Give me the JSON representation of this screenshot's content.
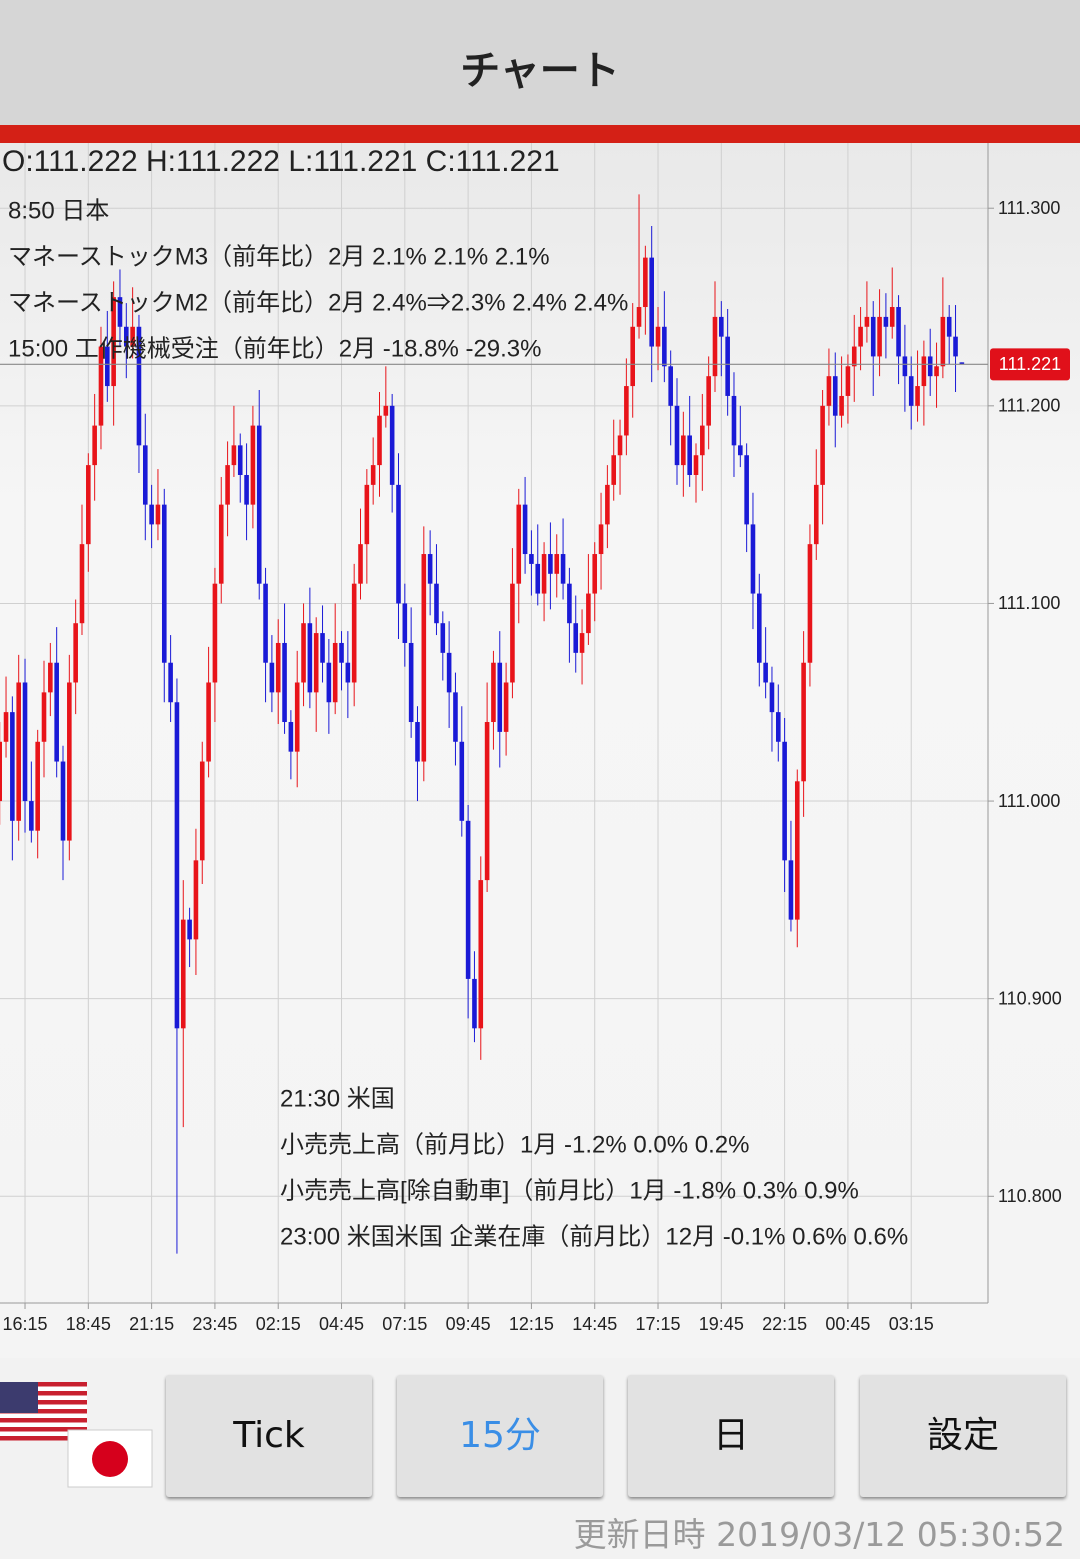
{
  "header": {
    "title": "チャート"
  },
  "chart_data": {
    "type": "candlestick",
    "ohlc_text": "O:111.222 H:111.222 L:111.221 C:111.221",
    "annotations": {
      "top": [
        "8:50 日本",
        "マネーストックM3（前年比）2月 2.1% 2.1% 2.1%",
        "マネーストックM2（前年比）2月 2.4%⇒2.3% 2.4% 2.4%",
        "15:00 工作機械受注（前年比）2月 -18.8% -29.3%"
      ],
      "bottom": [
        "21:30 米国",
        "小売売上高（前月比）1月 -1.2% 0.0% 0.2%",
        "小売売上高[除自動車]（前月比）1月 -1.8% 0.3% 0.9%",
        "23:00 米国米国 企業在庫（前月比）12月 -0.1% 0.6% 0.6%"
      ]
    },
    "categories": [
      null,
      null,
      null,
      null,
      "16:15",
      null,
      null,
      null,
      null,
      null,
      null,
      null,
      null,
      null,
      "18:45",
      null,
      null,
      null,
      null,
      null,
      null,
      null,
      null,
      null,
      "21:15",
      null,
      null,
      null,
      null,
      null,
      null,
      null,
      null,
      null,
      "23:45",
      null,
      null,
      null,
      null,
      null,
      null,
      null,
      null,
      null,
      "02:15",
      null,
      null,
      null,
      null,
      null,
      null,
      null,
      null,
      null,
      "04:45",
      null,
      null,
      null,
      null,
      null,
      null,
      null,
      null,
      null,
      "07:15",
      null,
      null,
      null,
      null,
      null,
      null,
      null,
      null,
      null,
      "09:45",
      null,
      null,
      null,
      null,
      null,
      null,
      null,
      null,
      null,
      "12:15",
      null,
      null,
      null,
      null,
      null,
      null,
      null,
      null,
      null,
      "14:45",
      null,
      null,
      null,
      null,
      null,
      null,
      null,
      null,
      null,
      "17:15",
      null,
      null,
      null,
      null,
      null,
      null,
      null,
      null,
      null,
      "19:45",
      null,
      null,
      null,
      null,
      null,
      null,
      null,
      null,
      null,
      "22:15",
      null,
      null,
      null,
      null,
      null,
      null,
      null,
      null,
      null,
      "00:45",
      null,
      null,
      null,
      null,
      null,
      null,
      null,
      null,
      null,
      "03:15",
      null,
      null,
      null,
      null,
      null,
      null,
      null,
      null
    ],
    "open": [
      111.0,
      111.03,
      111.045,
      110.99,
      111.06,
      111.0,
      110.985,
      111.03,
      111.055,
      111.07,
      111.02,
      110.98,
      111.06,
      111.09,
      111.13,
      111.17,
      111.19,
      111.23,
      111.21,
      111.255,
      111.24,
      111.23,
      111.24,
      111.18,
      111.15,
      111.14,
      111.15,
      111.07,
      111.05,
      110.885,
      110.94,
      110.93,
      110.97,
      111.02,
      111.06,
      111.11,
      111.15,
      111.17,
      111.18,
      111.165,
      111.15,
      111.19,
      111.11,
      111.07,
      111.055,
      111.08,
      111.04,
      111.025,
      111.06,
      111.09,
      111.055,
      111.085,
      111.07,
      111.05,
      111.08,
      111.07,
      111.06,
      111.11,
      111.13,
      111.16,
      111.17,
      111.195,
      111.2,
      111.16,
      111.1,
      111.08,
      111.04,
      111.02,
      111.125,
      111.11,
      111.09,
      111.075,
      111.055,
      111.03,
      110.99,
      110.91,
      110.885,
      110.96,
      111.04,
      111.07,
      111.035,
      111.06,
      111.11,
      111.15,
      111.125,
      111.12,
      111.105,
      111.125,
      111.115,
      111.125,
      111.11,
      111.09,
      111.075,
      111.085,
      111.105,
      111.125,
      111.14,
      111.16,
      111.175,
      111.185,
      111.21,
      111.24,
      111.25,
      111.275,
      111.23,
      111.24,
      111.22,
      111.2,
      111.17,
      111.185,
      111.165,
      111.175,
      111.19,
      111.215,
      111.245,
      111.235,
      111.205,
      111.18,
      111.175,
      111.14,
      111.105,
      111.07,
      111.06,
      111.045,
      111.03,
      110.97,
      110.94,
      111.01,
      111.07,
      111.13,
      111.16,
      111.2,
      111.215,
      111.195,
      111.205,
      111.22,
      111.23,
      111.24,
      111.245,
      111.225,
      111.245,
      111.24,
      111.25,
      111.225,
      111.215,
      111.2,
      111.21,
      111.225,
      111.215,
      111.22,
      111.245,
      111.235,
      111.222
    ],
    "high": [
      111.04,
      111.063,
      111.053,
      111.074,
      111.072,
      111.02,
      111.036,
      111.071,
      111.08,
      111.088,
      111.028,
      111.074,
      111.102,
      111.15,
      111.176,
      111.206,
      111.24,
      111.248,
      111.263,
      111.269,
      111.252,
      111.26,
      111.246,
      111.196,
      111.16,
      111.168,
      111.158,
      111.084,
      111.062,
      110.96,
      110.946,
      110.986,
      111.03,
      111.078,
      111.118,
      111.164,
      111.182,
      111.2,
      111.186,
      111.181,
      111.2,
      111.208,
      111.118,
      111.084,
      111.092,
      111.1,
      111.046,
      111.076,
      111.1,
      111.108,
      111.093,
      111.099,
      111.082,
      111.1,
      111.086,
      111.086,
      111.12,
      111.148,
      111.168,
      111.184,
      111.207,
      111.22,
      111.206,
      111.176,
      111.11,
      111.098,
      111.048,
      111.139,
      111.137,
      111.13,
      111.096,
      111.091,
      111.065,
      111.048,
      110.998,
      110.924,
      110.972,
      111.06,
      111.076,
      111.086,
      111.07,
      111.128,
      111.158,
      111.164,
      111.137,
      111.14,
      111.131,
      111.141,
      111.135,
      111.143,
      111.118,
      111.104,
      111.097,
      111.125,
      111.131,
      111.156,
      111.17,
      111.193,
      111.193,
      111.224,
      111.252,
      111.307,
      111.281,
      111.291,
      111.25,
      111.258,
      111.228,
      111.214,
      111.197,
      111.205,
      111.181,
      111.206,
      111.225,
      111.263,
      111.253,
      111.249,
      111.217,
      111.2,
      111.181,
      111.156,
      111.115,
      111.088,
      111.068,
      111.059,
      111.042,
      110.99,
      111.016,
      111.086,
      111.14,
      111.178,
      111.208,
      111.229,
      111.227,
      111.225,
      111.226,
      111.246,
      111.25,
      111.263,
      111.253,
      111.259,
      111.257,
      111.27,
      111.256,
      111.241,
      111.225,
      111.228,
      111.233,
      111.239,
      111.232,
      111.265,
      111.251,
      111.251,
      111.222
    ],
    "low": [
      110.988,
      111.022,
      110.97,
      110.98,
      110.984,
      110.979,
      110.971,
      111.012,
      111.043,
      111.012,
      110.96,
      110.97,
      111.044,
      111.084,
      111.116,
      111.152,
      111.178,
      111.202,
      111.19,
      111.23,
      111.214,
      111.224,
      111.166,
      111.132,
      111.128,
      111.132,
      111.05,
      111.04,
      110.771,
      110.835,
      110.916,
      110.912,
      110.958,
      111.012,
      111.04,
      111.1,
      111.134,
      111.164,
      111.151,
      111.132,
      111.138,
      111.102,
      111.05,
      111.045,
      111.039,
      111.034,
      111.011,
      111.007,
      111.048,
      111.047,
      111.035,
      111.06,
      111.034,
      111.044,
      111.056,
      111.042,
      111.048,
      111.102,
      111.11,
      111.15,
      111.154,
      111.189,
      111.146,
      111.082,
      111.068,
      111.032,
      111.0,
      111.01,
      111.094,
      111.084,
      111.061,
      111.037,
      111.018,
      110.982,
      110.89,
      110.878,
      110.869,
      110.954,
      111.026,
      111.017,
      111.023,
      111.052,
      111.09,
      111.115,
      111.104,
      111.099,
      111.091,
      111.097,
      111.103,
      111.102,
      111.07,
      111.065,
      111.059,
      111.079,
      111.091,
      111.107,
      111.128,
      111.152,
      111.155,
      111.175,
      111.194,
      111.234,
      111.236,
      111.212,
      111.218,
      111.212,
      111.18,
      111.16,
      111.154,
      111.159,
      111.151,
      111.157,
      111.178,
      111.207,
      111.215,
      111.195,
      111.164,
      111.169,
      111.126,
      111.087,
      111.058,
      111.052,
      111.025,
      111.02,
      110.954,
      110.934,
      110.926,
      110.992,
      111.058,
      111.122,
      111.14,
      111.19,
      111.179,
      111.189,
      111.191,
      111.202,
      111.218,
      111.232,
      111.205,
      111.215,
      111.224,
      111.234,
      111.211,
      111.197,
      111.188,
      111.192,
      111.19,
      111.205,
      111.199,
      111.214,
      111.221,
      111.207,
      111.221
    ],
    "close": [
      111.03,
      111.045,
      110.99,
      111.06,
      111.0,
      110.985,
      111.03,
      111.055,
      111.07,
      111.02,
      110.98,
      111.06,
      111.09,
      111.13,
      111.17,
      111.19,
      111.23,
      111.21,
      111.255,
      111.24,
      111.23,
      111.24,
      111.18,
      111.15,
      111.14,
      111.15,
      111.07,
      111.05,
      110.885,
      110.94,
      110.93,
      110.97,
      111.02,
      111.06,
      111.11,
      111.15,
      111.17,
      111.18,
      111.165,
      111.15,
      111.19,
      111.11,
      111.07,
      111.055,
      111.08,
      111.04,
      111.025,
      111.06,
      111.09,
      111.055,
      111.085,
      111.07,
      111.05,
      111.08,
      111.07,
      111.06,
      111.11,
      111.13,
      111.16,
      111.17,
      111.195,
      111.2,
      111.16,
      111.1,
      111.08,
      111.04,
      111.02,
      111.125,
      111.11,
      111.09,
      111.075,
      111.055,
      111.03,
      110.99,
      110.91,
      110.885,
      110.96,
      111.04,
      111.07,
      111.035,
      111.06,
      111.11,
      111.15,
      111.125,
      111.12,
      111.105,
      111.125,
      111.115,
      111.125,
      111.11,
      111.09,
      111.075,
      111.085,
      111.105,
      111.125,
      111.14,
      111.16,
      111.175,
      111.185,
      111.21,
      111.24,
      111.25,
      111.275,
      111.23,
      111.24,
      111.22,
      111.2,
      111.17,
      111.185,
      111.165,
      111.175,
      111.19,
      111.215,
      111.245,
      111.235,
      111.205,
      111.18,
      111.175,
      111.14,
      111.105,
      111.07,
      111.06,
      111.045,
      111.03,
      110.97,
      110.94,
      111.01,
      111.07,
      111.13,
      111.16,
      111.2,
      111.215,
      111.195,
      111.205,
      111.22,
      111.23,
      111.24,
      111.245,
      111.225,
      111.245,
      111.24,
      111.25,
      111.225,
      111.215,
      111.2,
      111.21,
      111.225,
      111.215,
      111.22,
      111.245,
      111.235,
      111.225,
      111.221
    ],
    "up_color": "#e8141a",
    "down_color": "#1a1ad6",
    "ylim": [
      110.746,
      111.333
    ],
    "yticks": [
      {
        "value": 110.8,
        "label": "110.800"
      },
      {
        "value": 110.9,
        "label": "110.900"
      },
      {
        "value": 111.0,
        "label": "111.000"
      },
      {
        "value": 111.1,
        "label": "111.100"
      },
      {
        "value": 111.2,
        "label": "111.200"
      },
      {
        "value": 111.3,
        "label": "111.300"
      }
    ],
    "grid": true
  },
  "buttons": [
    "Tick",
    "15分",
    "日",
    "設定"
  ],
  "footer": {
    "updated": "更新日時 2019/03/12 05:30:52"
  }
}
